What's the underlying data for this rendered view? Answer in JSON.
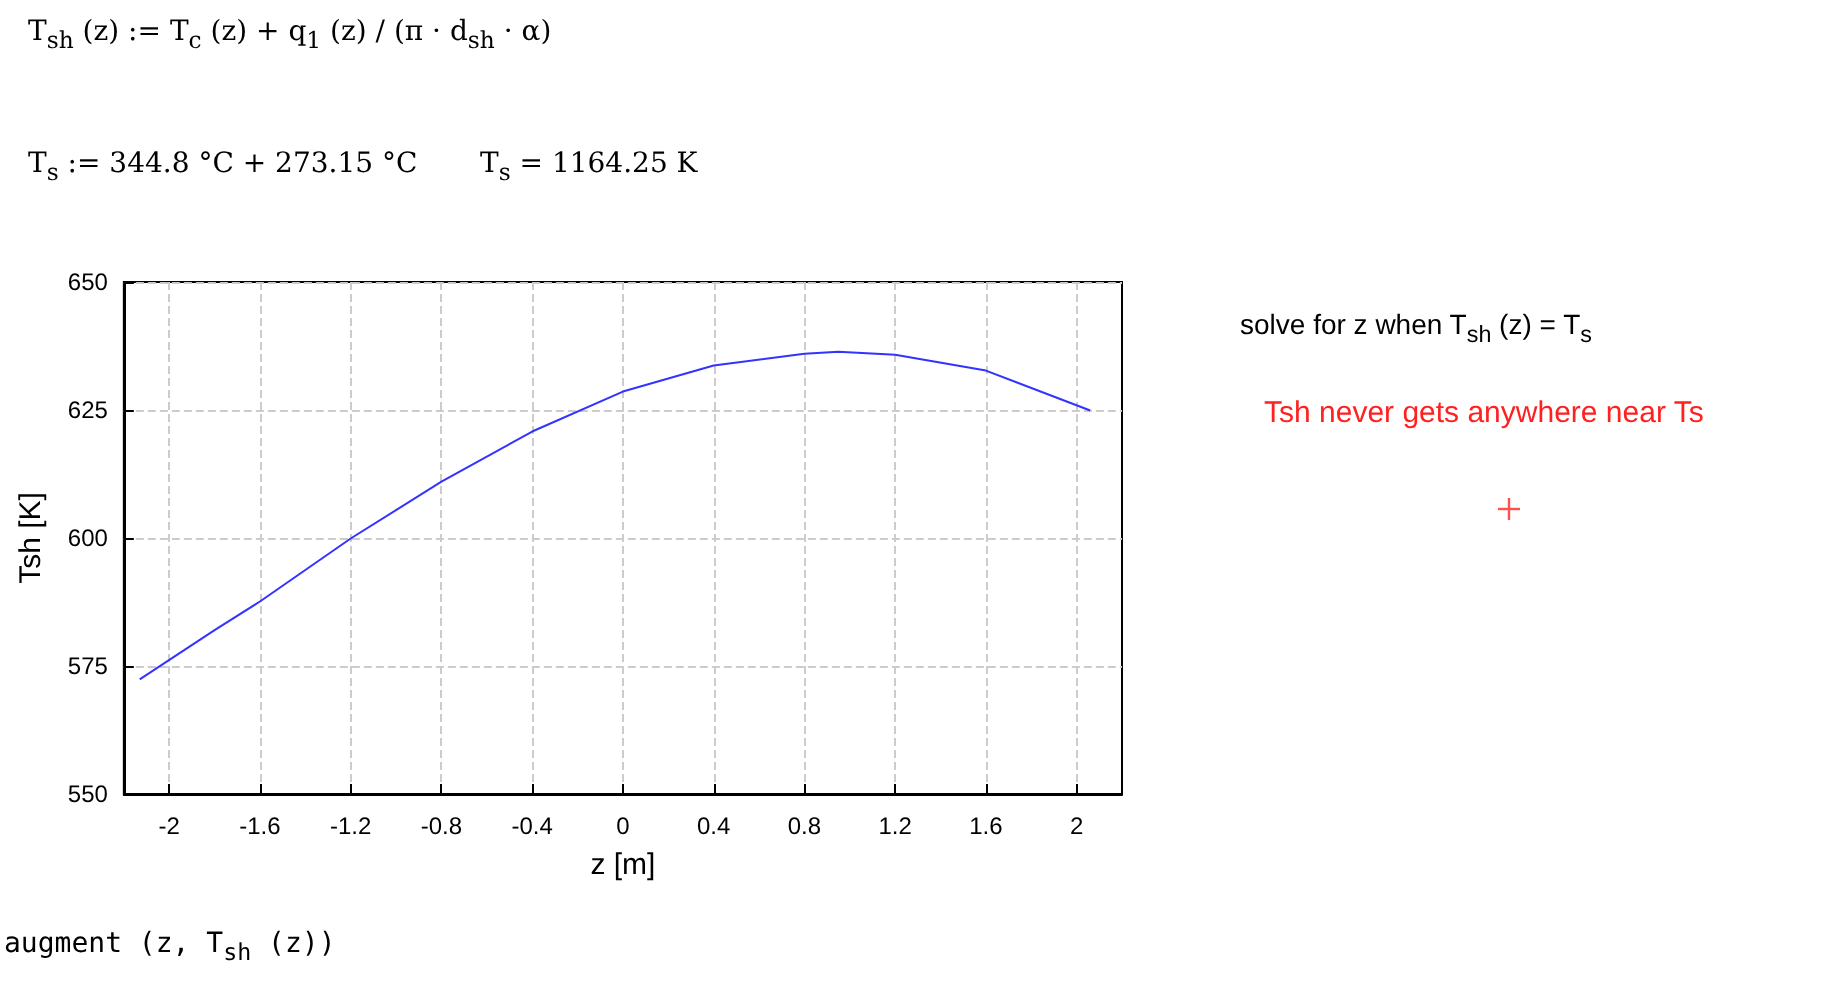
{
  "chart_data": {
    "type": "line",
    "xlabel": "z [m]",
    "ylabel": "Tsh [K]",
    "annotations": [
      "T$_{sh}$ (z) := T$_{c}$ (z) + q$_{1}$ (z) / (π · d$_{sh}$ · α)",
      "T$_{s}$ := 344.8 °C + 273.15 °C",
      "T$_{s}$ = 1164.25 K",
      "solve for z when T$_{sh}$ (z) = T$_{s}$",
      "Tsh never gets anywhere near Ts",
      "augment (z, T$_{sh}$ (z))"
    ],
    "series": [
      {
        "color": "#3333ff",
        "x": [
          -2.13,
          -1.8,
          -1.6,
          -1.2,
          -0.8,
          -0.4,
          0,
          0.4,
          0.8,
          0.95,
          1.2,
          1.6,
          2.06
        ],
        "values": [
          572.4,
          582,
          587.6,
          599.9,
          611,
          620.8,
          628.6,
          633.7,
          636,
          636.4,
          635.8,
          632.7,
          624.9
        ]
      }
    ],
    "xlim": [
      -2.2,
      2.2
    ],
    "xticks": [
      -2,
      -1.6,
      -1.2,
      -0.8,
      -0.4,
      0,
      0.4,
      0.8,
      1.2,
      1.6,
      2
    ],
    "ylim": [
      550,
      650
    ],
    "yticks": [
      550,
      575,
      600,
      625,
      650
    ],
    "grid": true,
    "marker": "none",
    "line_style": "solid"
  }
}
